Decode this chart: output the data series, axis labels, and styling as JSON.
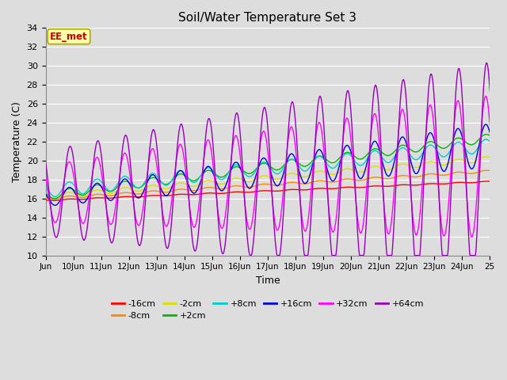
{
  "title": "Soil/Water Temperature Set 3",
  "xlabel": "Time",
  "ylabel": "Temperature (C)",
  "ylim": [
    10,
    34
  ],
  "yticks": [
    10,
    12,
    14,
    16,
    18,
    20,
    22,
    24,
    26,
    28,
    30,
    32,
    34
  ],
  "xtick_labels": [
    "Jun",
    "10Jun",
    "11Jun",
    "12Jun",
    "13Jun",
    "14Jun",
    "15Jun",
    "16Jun",
    "17Jun",
    "18Jun",
    "19Jun",
    "20Jun",
    "21Jun",
    "22Jun",
    "23Jun",
    "24Jun",
    "25"
  ],
  "bg_color": "#dddddd",
  "plot_bg_color": "#dddddd",
  "grid_color": "#ffffff",
  "annotation_text": "EE_met",
  "annotation_bg": "#ffffaa",
  "annotation_fg": "#cc0000",
  "annotation_edge": "#aaaa00",
  "series_colors": {
    "-16cm": "#ff0000",
    "-8cm": "#ff8800",
    "-2cm": "#dddd00",
    "+2cm": "#00bb00",
    "+8cm": "#00cccc",
    "+16cm": "#0000dd",
    "+32cm": "#ff00ff",
    "+64cm": "#9900bb"
  },
  "legend_order": [
    "-16cm",
    "-8cm",
    "-2cm",
    "+2cm",
    "+8cm",
    "+16cm",
    "+32cm",
    "+64cm"
  ],
  "n_points": 768,
  "n_days": 16
}
